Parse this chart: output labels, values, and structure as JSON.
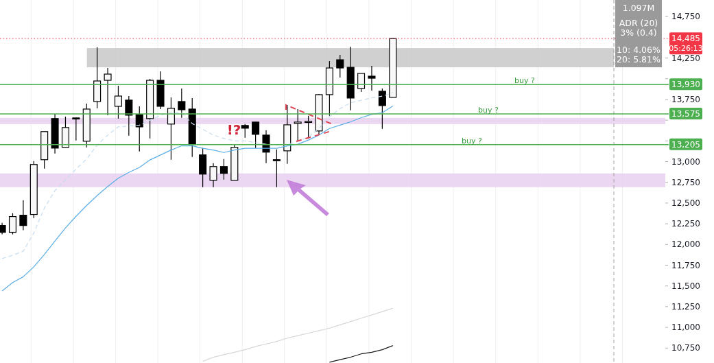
{
  "chart_data": {
    "type": "candlestick",
    "categories": [
      null,
      null,
      null,
      null,
      null,
      null,
      null,
      null,
      null,
      null,
      null,
      null,
      null,
      null,
      null,
      null,
      null,
      null,
      null,
      null,
      null,
      null,
      null,
      null,
      null,
      null,
      null,
      null,
      null,
      null,
      null,
      null,
      null,
      null,
      null,
      null,
      null,
      null,
      null,
      null,
      null,
      null,
      null,
      null,
      null,
      null,
      null,
      null,
      null,
      null,
      null,
      null,
      null,
      null,
      null,
      null,
      null,
      null,
      null,
      null,
      null,
      null,
      null
    ],
    "ohlc": [
      [
        12229,
        12262,
        12122,
        12147
      ],
      [
        12147,
        12378,
        12122,
        12337
      ],
      [
        12353,
        12535,
        12172,
        12229
      ],
      [
        12362,
        13006,
        12320,
        12965
      ],
      [
        13023,
        13362,
        12915,
        13362
      ],
      [
        13519,
        13577,
        13097,
        13163
      ],
      [
        13172,
        13543,
        13172,
        13411
      ],
      [
        13527,
        13530,
        13254,
        13520
      ],
      [
        13246,
        13700,
        13172,
        13634
      ],
      [
        13725,
        14378,
        13643,
        13973
      ],
      [
        13981,
        14130,
        13560,
        14056
      ],
      [
        13667,
        13915,
        13519,
        13791
      ],
      [
        13742,
        13791,
        13312,
        13560
      ],
      [
        13568,
        13667,
        13122,
        13419
      ],
      [
        13519,
        13998,
        13279,
        13981
      ],
      [
        13981,
        14089,
        13634,
        13667
      ],
      [
        13453,
        13775,
        13023,
        13643
      ],
      [
        13725,
        13882,
        13527,
        13626
      ],
      [
        13634,
        13767,
        13056,
        13205
      ],
      [
        13081,
        13163,
        12692,
        12849
      ],
      [
        12775,
        12982,
        12692,
        12940
      ],
      [
        12940,
        13031,
        12783,
        12858
      ],
      [
        12775,
        13205,
        12775,
        13172
      ],
      [
        13436,
        13453,
        13287,
        13403
      ],
      [
        13477,
        13480,
        13163,
        13329
      ],
      [
        13320,
        13378,
        12982,
        13114
      ],
      [
        13023,
        13147,
        12692,
        13015
      ],
      [
        13130,
        13684,
        12973,
        13444
      ],
      [
        13461,
        13634,
        13246,
        13477
      ],
      [
        13477,
        13552,
        13279,
        13485
      ],
      [
        13370,
        13816,
        13320,
        13808
      ],
      [
        13808,
        14213,
        13552,
        14130
      ],
      [
        14229,
        14287,
        14014,
        14130
      ],
      [
        14138,
        14386,
        13618,
        13767
      ],
      [
        13882,
        14064,
        13841,
        14064
      ],
      [
        14031,
        14155,
        13857,
        14006
      ],
      [
        13849,
        13882,
        13395,
        13676
      ],
      [
        13775,
        14490,
        13775,
        14485
      ],
      null,
      null,
      null,
      null,
      null,
      null,
      null,
      null,
      null,
      null,
      null,
      null,
      null,
      null,
      null,
      null,
      null,
      null,
      null,
      null,
      null,
      null,
      null,
      null,
      null
    ],
    "series": [
      {
        "type": "line",
        "color": "#5aaee8",
        "line_style": "solid",
        "values": [
          11440,
          11540,
          11610,
          11730,
          11880,
          12040,
          12200,
          12340,
          12470,
          12590,
          12700,
          12800,
          12870,
          12930,
          13020,
          13080,
          13140,
          13190,
          13190,
          13160,
          13140,
          13110,
          13140,
          13160,
          13160,
          13160,
          13160,
          13190,
          13210,
          13260,
          13320,
          13400,
          13440,
          13480,
          13530,
          13570,
          13590,
          13670,
          null,
          null,
          null,
          null,
          null,
          null,
          null,
          null,
          null,
          null,
          null,
          null,
          null,
          null,
          null,
          null,
          null,
          null,
          null,
          null,
          null,
          null,
          null,
          null,
          null
        ]
      },
      {
        "type": "line",
        "color": "#c6dcee",
        "line_style": "dashed",
        "values": [
          11830,
          11870,
          11920,
          12140,
          12440,
          12650,
          12780,
          12910,
          13030,
          13200,
          13320,
          13420,
          13430,
          13440,
          13500,
          13560,
          13590,
          13590,
          13460,
          13390,
          13320,
          13280,
          13250,
          13250,
          13230,
          13210,
          13200,
          13210,
          13240,
          13300,
          13400,
          13540,
          13640,
          13710,
          13740,
          13770,
          13790,
          13830,
          null,
          null,
          null,
          null,
          null,
          null,
          null,
          null,
          null,
          null,
          null,
          null,
          null,
          null,
          null,
          null,
          null,
          null,
          null,
          null,
          null,
          null,
          null,
          null,
          null
        ]
      },
      {
        "type": "line",
        "color": "#d6d6d6",
        "line_style": "solid",
        "values": [
          null,
          null,
          null,
          null,
          null,
          null,
          null,
          null,
          null,
          null,
          null,
          null,
          null,
          null,
          null,
          null,
          null,
          null,
          null,
          10590,
          10640,
          10670,
          10700,
          10730,
          10770,
          10800,
          10830,
          10870,
          10900,
          10930,
          10960,
          10990,
          11030,
          11070,
          11110,
          11150,
          11190,
          11230,
          null,
          null,
          null,
          null,
          null,
          null,
          null,
          null,
          null,
          null,
          null,
          null,
          null,
          null,
          null,
          null,
          null,
          null,
          null,
          null,
          null,
          null,
          null,
          null,
          null
        ]
      },
      {
        "type": "line",
        "color": "#1a1a1a",
        "line_style": "solid",
        "values": [
          null,
          null,
          null,
          null,
          null,
          null,
          null,
          null,
          null,
          null,
          null,
          null,
          null,
          null,
          null,
          null,
          null,
          null,
          null,
          null,
          null,
          null,
          null,
          null,
          null,
          null,
          null,
          null,
          null,
          null,
          null,
          10580,
          10610,
          10640,
          10680,
          10700,
          10730,
          10780,
          null,
          null,
          null,
          null,
          null,
          null,
          null,
          null,
          null,
          null,
          null,
          null,
          null,
          null,
          null,
          null,
          null,
          null,
          null,
          null,
          null,
          null,
          null,
          null,
          null
        ]
      }
    ],
    "ylim": [
      10570,
      14950
    ],
    "yticks": [
      {
        "value": 10750,
        "label": "10,750"
      },
      {
        "value": 11000,
        "label": "11,000"
      },
      {
        "value": 11250,
        "label": "11,250"
      },
      {
        "value": 11500,
        "label": "11,500"
      },
      {
        "value": 11750,
        "label": "11,750"
      },
      {
        "value": 12000,
        "label": "12,000"
      },
      {
        "value": 12250,
        "label": "12,250"
      },
      {
        "value": 12500,
        "label": "12,500"
      },
      {
        "value": 12750,
        "label": "12,750"
      },
      {
        "value": 13000,
        "label": "13,000"
      },
      {
        "value": 13250,
        "label": null
      },
      {
        "value": 13500,
        "label": null
      },
      {
        "value": 13750,
        "label": "13,750"
      },
      {
        "value": 14000,
        "label": null
      },
      {
        "value": 14250,
        "label": "14,250"
      },
      {
        "value": 14750,
        "label": "14,750"
      }
    ],
    "tick_labels": "y",
    "grid": "x",
    "bands": [
      {
        "axis": "y",
        "from": 14138,
        "to": 14370,
        "color": "#c8c8c8"
      },
      {
        "axis": "y",
        "from": 12692,
        "to": 12858,
        "color": "#e8d0ef"
      },
      {
        "axis": "y",
        "from": 13453,
        "to": 13527,
        "color": "#e8d0ef"
      }
    ],
    "ref_lines": [
      {
        "axis": "y",
        "value": 14485,
        "label": "14,485",
        "color": "#f23645",
        "line_style": "dotted"
      },
      {
        "axis": "y",
        "value": 13930,
        "label": "13,930",
        "color": "#4caf50",
        "line_style": "solid"
      },
      {
        "axis": "y",
        "value": 13575,
        "label": "13,575",
        "color": "#4caf50",
        "line_style": "solid"
      },
      {
        "axis": "y",
        "value": 13205,
        "label": "13,205",
        "color": "#4caf50",
        "line_style": "solid"
      }
    ],
    "annotations": [
      "!?",
      "1.097M",
      "ADR (20)",
      "3% (0.4)",
      "10: 4.06%",
      "20: 5.81%",
      "05:26:13",
      {
        "text": "buy ?",
        "y": 13930
      },
      {
        "text": "buy ?",
        "y": 13575
      },
      {
        "text": "buy ?",
        "y": 13205
      }
    ]
  }
}
